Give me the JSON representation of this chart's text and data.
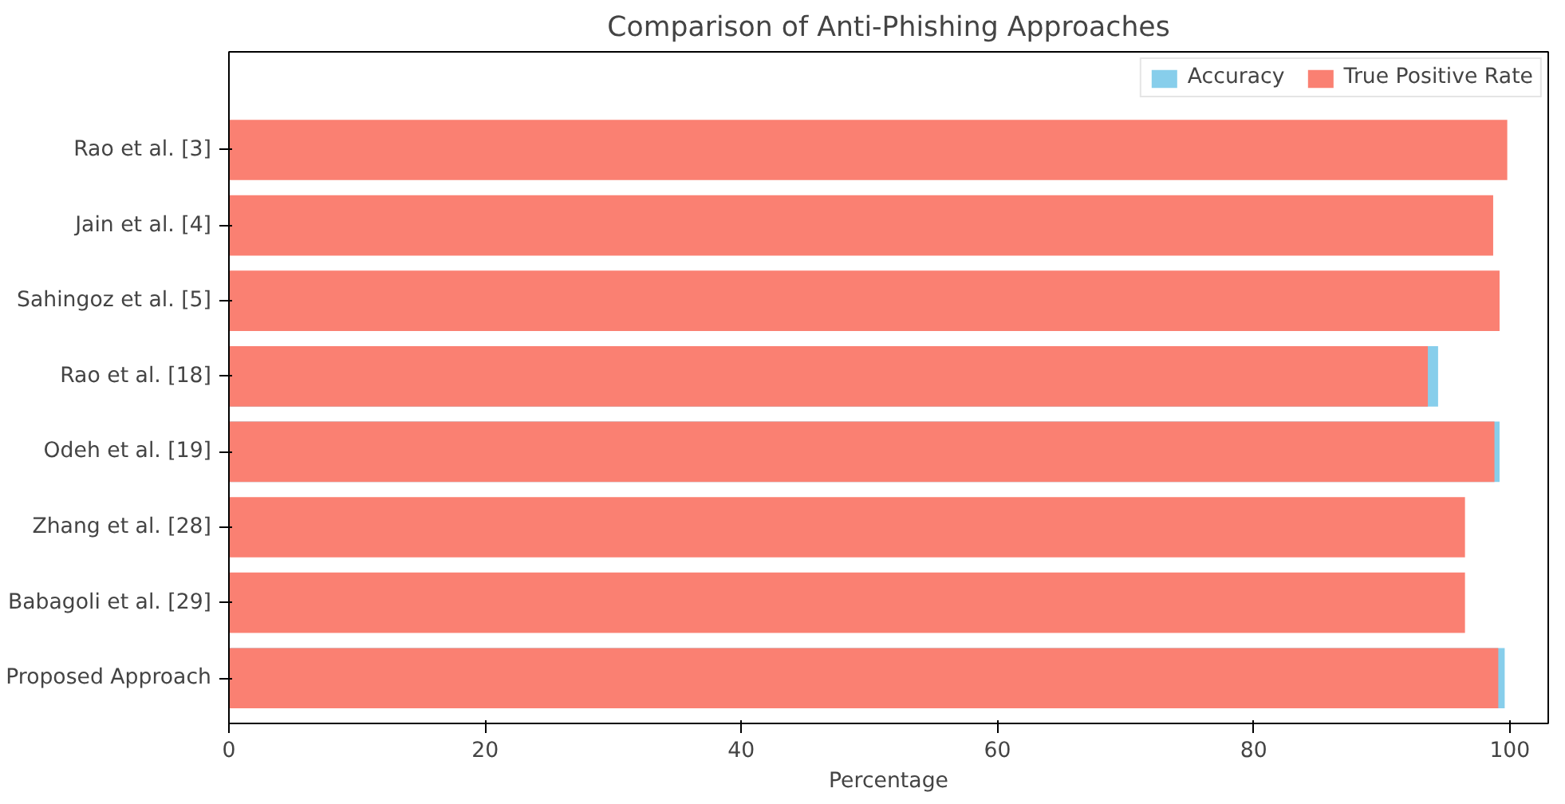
{
  "chart_data": {
    "type": "bar",
    "orientation": "horizontal",
    "title": "Comparison of Anti-Phishing Approaches",
    "xlabel": "Percentage",
    "categories": [
      "Rao et al. [3]",
      "Jain et al. [4]",
      "Sahingoz et al. [5]",
      "Rao et al. [18]",
      "Odeh et al. [19]",
      "Zhang et al. [28]",
      "Babagoli et al. [29]",
      "Proposed Approach"
    ],
    "series": [
      {
        "name": "Accuracy",
        "color": "#87ceeb",
        "values": [
          null,
          null,
          null,
          94.4,
          99.2,
          null,
          null,
          99.6
        ]
      },
      {
        "name": "True Positive Rate",
        "color": "#fa8072",
        "values": [
          99.8,
          98.7,
          99.2,
          93.6,
          98.8,
          96.5,
          96.5,
          99.1
        ]
      }
    ],
    "xlim": [
      0,
      103
    ],
    "xticks": [
      0,
      20,
      40,
      60,
      80,
      100
    ],
    "grid": false,
    "legend": "top right"
  }
}
